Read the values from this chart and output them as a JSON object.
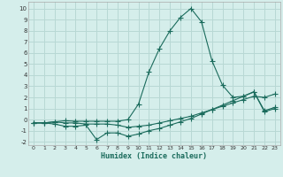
{
  "title": "",
  "xlabel": "Humidex (Indice chaleur)",
  "xlim": [
    -0.5,
    23.5
  ],
  "ylim": [
    -2.3,
    10.6
  ],
  "xticks": [
    0,
    1,
    2,
    3,
    4,
    5,
    6,
    7,
    8,
    9,
    10,
    11,
    12,
    13,
    14,
    15,
    16,
    17,
    18,
    19,
    20,
    21,
    22,
    23
  ],
  "yticks": [
    -2,
    -1,
    0,
    1,
    2,
    3,
    4,
    5,
    6,
    7,
    8,
    9,
    10
  ],
  "bg_color": "#d5eeeb",
  "grid_color": "#b8d8d4",
  "line_color": "#1a6b5c",
  "line1_x": [
    0,
    1,
    2,
    3,
    4,
    5,
    6,
    7,
    8,
    9,
    10,
    11,
    12,
    13,
    14,
    15,
    16,
    17,
    18,
    19,
    20,
    21,
    22,
    23
  ],
  "line1_y": [
    -0.3,
    -0.3,
    -0.2,
    -0.1,
    -0.15,
    -0.15,
    -0.15,
    -0.15,
    -0.15,
    0.0,
    1.4,
    4.3,
    6.4,
    8.0,
    9.2,
    10.0,
    8.8,
    5.3,
    3.1,
    2.0,
    2.1,
    2.5,
    0.8,
    1.1
  ],
  "line2_x": [
    0,
    1,
    2,
    3,
    4,
    5,
    6,
    7,
    8,
    9,
    10,
    11,
    12,
    13,
    14,
    15,
    16,
    17,
    18,
    19,
    20,
    21,
    22,
    23
  ],
  "line2_y": [
    -0.3,
    -0.3,
    -0.2,
    -0.3,
    -0.3,
    -0.4,
    -0.4,
    -0.4,
    -0.5,
    -0.7,
    -0.6,
    -0.5,
    -0.3,
    -0.1,
    0.1,
    0.3,
    0.6,
    0.9,
    1.2,
    1.5,
    1.8,
    2.1,
    2.0,
    2.3
  ],
  "line3_x": [
    0,
    1,
    2,
    3,
    4,
    5,
    6,
    7,
    8,
    9,
    10,
    11,
    12,
    13,
    14,
    15,
    16,
    17,
    18,
    19,
    20,
    21,
    22,
    23
  ],
  "line3_y": [
    -0.3,
    -0.3,
    -0.4,
    -0.6,
    -0.6,
    -0.5,
    -1.8,
    -1.2,
    -1.2,
    -1.5,
    -1.3,
    -1.0,
    -0.8,
    -0.5,
    -0.2,
    0.1,
    0.5,
    0.9,
    1.3,
    1.7,
    2.1,
    2.5,
    0.7,
    1.0
  ]
}
